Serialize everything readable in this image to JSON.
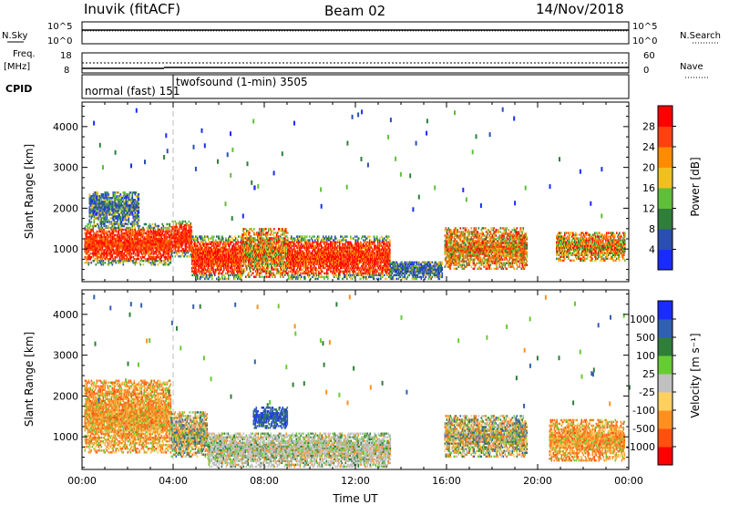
{
  "header": {
    "station": "Inuvik (fitACF)",
    "beam": "Beam 02",
    "date": "14/Nov/2018"
  },
  "top_panels": {
    "nsky_label": "N.Sky",
    "nsky_ticks": [
      "10^5",
      "10^0"
    ],
    "nsearch_label": "N.Search",
    "nsearch_ticks": [
      "10^5",
      "10^0"
    ],
    "freq_label_1": "Freq.",
    "freq_label_2": "[MHz]",
    "freq_ticks": [
      "18",
      "8"
    ],
    "nave_label": "Nave",
    "nave_ticks": [
      "60",
      "0"
    ],
    "cpid_label": "CPID",
    "cpid_segments": [
      {
        "text": "normal (fast) 151",
        "start_hour": 0.0
      },
      {
        "text": "twofsound (1-min) 3505",
        "start_hour": 4.0
      }
    ]
  },
  "chart_data": [
    {
      "type": "heatmap",
      "name": "power",
      "xlabel": "",
      "ylabel": "Slant Range [km]",
      "xlim": [
        0,
        24
      ],
      "ylim": [
        200,
        4600
      ],
      "yticks": [
        "1000",
        "2000",
        "3000",
        "4000"
      ],
      "colorbar_label": "Power [dB]",
      "colorbar_ticks": [
        "4",
        "8",
        "12",
        "16",
        "20",
        "24",
        "28"
      ],
      "colorbar_colors": [
        "#1a2bff",
        "#2a4fb0",
        "#2f7f3a",
        "#5fbf3a",
        "#f0c020",
        "#ff8c00",
        "#ff4010",
        "#ff0000"
      ],
      "colorbar_range": [
        0,
        32
      ],
      "marker_hour": 4.0,
      "echo_regions": [
        {
          "t0": 0.1,
          "t1": 3.9,
          "r0": 600,
          "r1": 1600,
          "level": "high"
        },
        {
          "t0": 0.3,
          "t1": 2.5,
          "r0": 1600,
          "r1": 2400,
          "level": "low"
        },
        {
          "t0": 3.9,
          "t1": 4.8,
          "r0": 800,
          "r1": 1700,
          "level": "high"
        },
        {
          "t0": 4.8,
          "t1": 7.0,
          "r0": 250,
          "r1": 1300,
          "level": "high"
        },
        {
          "t0": 7.0,
          "t1": 9.0,
          "r0": 300,
          "r1": 1500,
          "level": "mid"
        },
        {
          "t0": 9.0,
          "t1": 13.5,
          "r0": 250,
          "r1": 1300,
          "level": "high"
        },
        {
          "t0": 13.5,
          "t1": 15.8,
          "r0": 250,
          "r1": 700,
          "level": "low"
        },
        {
          "t0": 15.9,
          "t1": 19.5,
          "r0": 500,
          "r1": 1500,
          "level": "mid"
        },
        {
          "t0": 20.8,
          "t1": 23.8,
          "r0": 700,
          "r1": 1400,
          "level": "mid"
        }
      ]
    },
    {
      "type": "heatmap",
      "name": "velocity",
      "xlabel": "Time UT",
      "ylabel": "Slant Range [km]",
      "xlim": [
        0,
        24
      ],
      "ylim": [
        200,
        4600
      ],
      "xticks": [
        "00:00",
        "04:00",
        "08:00",
        "12:00",
        "16:00",
        "20:00",
        "00:00"
      ],
      "yticks": [
        "1000",
        "2000",
        "3000",
        "4000"
      ],
      "colorbar_label": "Velocity [m s⁻¹]",
      "colorbar_ticks": [
        "1000",
        "500",
        "100",
        "25",
        "-25",
        "-100",
        "-500",
        "-1000"
      ],
      "colorbar_colors": [
        "#1a2bff",
        "#3060b0",
        "#2f7f3a",
        "#66cc33",
        "#c0c0c0",
        "#ffd060",
        "#ff9020",
        "#ff5010",
        "#ff0000"
      ],
      "marker_hour": 4.0,
      "echo_regions": [
        {
          "t0": 0.1,
          "t1": 3.9,
          "r0": 600,
          "r1": 2400,
          "level": "neg"
        },
        {
          "t0": 3.9,
          "t1": 5.5,
          "r0": 500,
          "r1": 1600,
          "level": "mix"
        },
        {
          "t0": 5.5,
          "t1": 13.5,
          "r0": 250,
          "r1": 1100,
          "level": "gs"
        },
        {
          "t0": 7.5,
          "t1": 9.0,
          "r0": 1200,
          "r1": 1700,
          "level": "pos"
        },
        {
          "t0": 15.9,
          "t1": 19.5,
          "r0": 500,
          "r1": 1500,
          "level": "mix"
        },
        {
          "t0": 20.5,
          "t1": 23.8,
          "r0": 400,
          "r1": 1400,
          "level": "neg"
        }
      ]
    }
  ]
}
